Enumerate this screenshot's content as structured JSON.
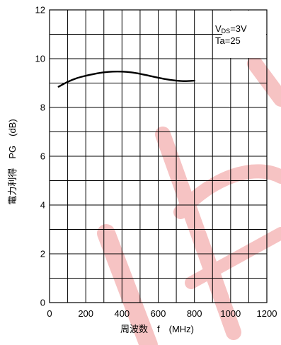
{
  "chart_data": {
    "type": "line",
    "title": "",
    "xlabel": "周波数　f　(MHz)",
    "ylabel": "電力利得　PG　(dB)",
    "xlim": [
      0,
      1200
    ],
    "ylim": [
      0,
      12
    ],
    "x_ticks": [
      "0",
      "200",
      "400",
      "600",
      "800",
      "1000",
      "1200"
    ],
    "y_ticks": [
      "0",
      "2",
      "4",
      "6",
      "8",
      "10",
      "12"
    ],
    "x_grid_step": 100,
    "y_grid_step": 1,
    "grid": true,
    "annotation": {
      "line1_main": "V",
      "line1_sub": "DS",
      "line1_rest": "=3V",
      "line2": "Ta=25"
    },
    "series": [
      {
        "x": [
          50,
          100,
          150,
          200,
          250,
          300,
          350,
          400,
          450,
          500,
          550,
          600,
          650,
          700,
          750,
          800
        ],
        "y": [
          8.85,
          9.05,
          9.2,
          9.3,
          9.38,
          9.44,
          9.47,
          9.47,
          9.44,
          9.38,
          9.3,
          9.22,
          9.15,
          9.1,
          9.08,
          9.1
        ],
        "color": "#000000"
      }
    ],
    "watermark_color": "#f6c3c3"
  }
}
